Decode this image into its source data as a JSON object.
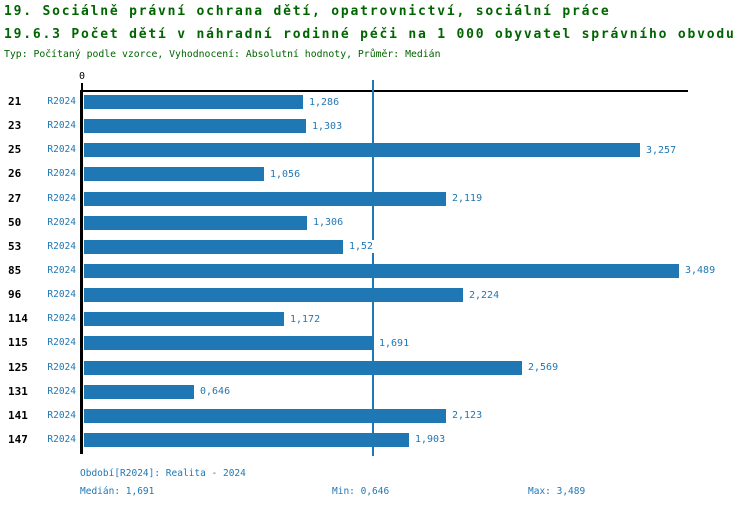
{
  "header": {
    "title_line1": "19. Sociálně právní ochrana dětí, opatrovnictví, sociální práce",
    "title_line2": "19.6.3 Počet dětí v náhradní rodinné péči na 1 000 obyvatel správního obvodu",
    "subtitle": "Typ: Počítaný podle vzorce, Vyhodnocení: Absolutní hodnoty, Průměr: Medián"
  },
  "colors": {
    "bar": "#1f77b4",
    "title_text": "#006400",
    "axis": "#000000"
  },
  "axis": {
    "zero_label": "0"
  },
  "chart_data": {
    "type": "bar",
    "orientation": "horizontal",
    "title": "19.6.3 Počet dětí v náhradní rodinné péči na 1 000 obyvatel správního obvodu",
    "series_label": "R2024",
    "categories": [
      "21",
      "23",
      "25",
      "26",
      "27",
      "50",
      "53",
      "85",
      "96",
      "114",
      "115",
      "125",
      "131",
      "141",
      "147"
    ],
    "values": [
      1.286,
      1.303,
      3.257,
      1.056,
      2.119,
      1.306,
      1.52,
      3.489,
      2.224,
      1.172,
      1.691,
      2.569,
      0.646,
      2.123,
      1.903
    ],
    "value_labels": [
      "1,286",
      "1,303",
      "3,257",
      "1,056",
      "2,119",
      "1,306",
      "1,52",
      "3,489",
      "2,224",
      "1,172",
      "1,691",
      "2,569",
      "0,646",
      "2,123",
      "1,903"
    ],
    "xlim": [
      0,
      3.54
    ],
    "tick_labels": [
      "0"
    ],
    "median_line": 1.691,
    "grid": false,
    "legend": "none",
    "stats": {
      "median": 1.691,
      "min": 0.646,
      "max": 3.489
    }
  },
  "footer": {
    "period": "Období[R2024]: Realita - 2024",
    "median": "Medián: 1,691",
    "min": "Min: 0,646",
    "max": "Max: 3,489"
  }
}
